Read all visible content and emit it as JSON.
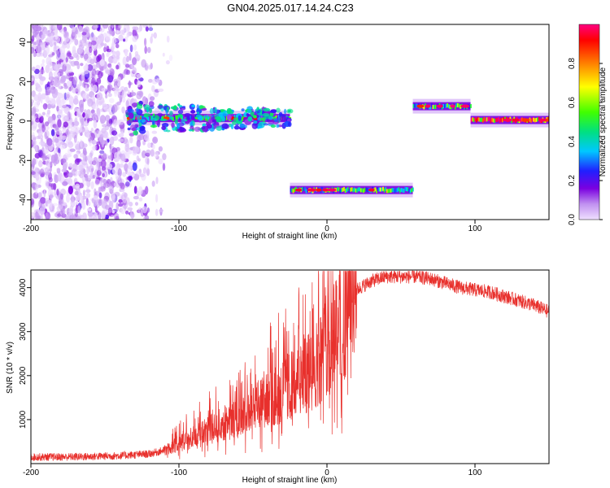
{
  "title": "GN04.2025.017.14.24.C23",
  "chart_data": [
    {
      "type": "heatmap",
      "title": "GN04.2025.017.14.24.C23",
      "xlabel": "Height of straight line (km)",
      "ylabel": "Frequency (Hz)",
      "xlim": [
        -200,
        150
      ],
      "ylim": [
        -50,
        49
      ],
      "xticks": [
        -200,
        -100,
        0,
        100
      ],
      "yticks": [
        -40,
        -20,
        0,
        20,
        40
      ],
      "colorbar": {
        "label": "Normalized spectral amplitude",
        "range": [
          0.0,
          1.0
        ],
        "ticks": [
          "0.0",
          "0.2",
          "0.4",
          "0.6",
          "0.8"
        ],
        "colormap": [
          "#f0e0ff",
          "#c090f0",
          "#7a00e0",
          "#2020ff",
          "#00c8ff",
          "#00e080",
          "#40ff00",
          "#ffff00",
          "#ff8000",
          "#ff0000",
          "#ff0080"
        ]
      },
      "segments": [
        {
          "region": "noise",
          "x_range": [
            -200,
            -105
          ],
          "freq_range": [
            -50,
            49
          ],
          "amplitude": 0.1
        },
        {
          "region": "band",
          "x_range": [
            -135,
            -25
          ],
          "freq_center": 1.5,
          "amplitude": 0.4
        },
        {
          "region": "band",
          "x_range": [
            -25,
            58
          ],
          "freq_center": -35,
          "amplitude": 0.5
        },
        {
          "region": "band",
          "x_range": [
            58,
            97
          ],
          "freq_center": 7.5,
          "amplitude": 0.45
        },
        {
          "region": "band",
          "x_range": [
            97,
            150
          ],
          "freq_center": 0.5,
          "amplitude": 0.8
        }
      ]
    },
    {
      "type": "line",
      "xlabel": "Height of straight line (km)",
      "ylabel": "SNR (10 * v/v)",
      "xlim": [
        -200,
        150
      ],
      "ylim": [
        0,
        4400
      ],
      "xticks": [
        -200,
        -100,
        0,
        100
      ],
      "yticks": [
        1000,
        2000,
        3000,
        4000
      ],
      "color": "#e8302c",
      "series": [
        {
          "x": [
            -200,
            -180,
            -160,
            -140,
            -120,
            -110,
            -100,
            -90,
            -80,
            -70,
            -60,
            -50,
            -40,
            -30,
            -20,
            -10,
            0,
            5,
            9,
            10,
            11,
            13,
            20,
            30,
            40,
            50,
            60,
            70,
            80,
            90,
            100,
            110,
            120,
            130,
            140,
            150
          ],
          "values": [
            150,
            150,
            160,
            180,
            220,
            300,
            450,
            600,
            750,
            900,
            1050,
            1250,
            1450,
            1650,
            1850,
            2100,
            2700,
            3100,
            3400,
            800,
            3300,
            3500,
            3950,
            4150,
            4250,
            4250,
            4250,
            4200,
            4100,
            4000,
            3950,
            3900,
            3800,
            3700,
            3600,
            3450
          ]
        }
      ]
    }
  ]
}
